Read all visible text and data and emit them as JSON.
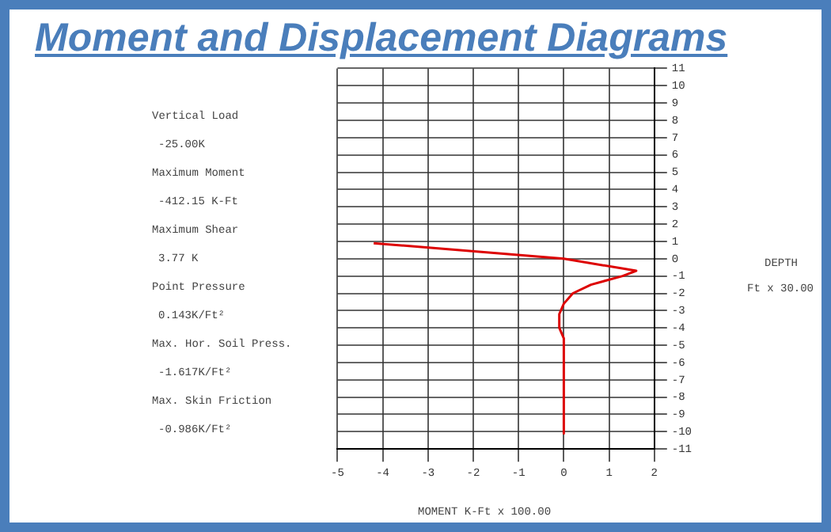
{
  "chart_data": {
    "type": "line",
    "title": "Moment and Displacement Diagrams",
    "xlabel": "MOMENT K-Ft x 100.00",
    "annotations": [
      "DEPTH",
      "Ft x 30.00",
      "Vertical Load",
      "-25.00K",
      "Maximum Moment",
      "-412.15 K-Ft",
      "Maximum Shear",
      "3.77 K",
      "Point Pressure",
      "0.143K/Ft²",
      "Max. Hor. Soil Press.",
      "-1.617K/Ft²",
      "Max. Skin Friction",
      "-0.986K/Ft²"
    ],
    "series": [
      {
        "color": "#dd0000",
        "x": [
          -4.2,
          0,
          1.6,
          1.3,
          0.6,
          0.2,
          0,
          -0.1,
          -0.1,
          0,
          0
        ],
        "values": [
          0.9,
          0,
          -0.7,
          -1.0,
          -1.5,
          -2.0,
          -2.6,
          -3.2,
          -4.0,
          -4.6,
          -10.1
        ]
      }
    ],
    "xlim": [
      -5,
      2
    ],
    "xticks": [
      -5,
      -4,
      -3,
      -2,
      -1,
      0,
      1,
      2
    ],
    "ylim": [
      -11,
      11
    ],
    "yticks": [
      -11,
      -10,
      -9,
      -8,
      -7,
      -6,
      -5,
      -4,
      -3,
      -2,
      -1,
      0,
      1,
      2,
      3,
      4,
      5,
      6,
      7,
      8,
      9,
      10,
      11
    ],
    "grid": true,
    "legend": false,
    "marker": "none",
    "line_style": "solid"
  }
}
